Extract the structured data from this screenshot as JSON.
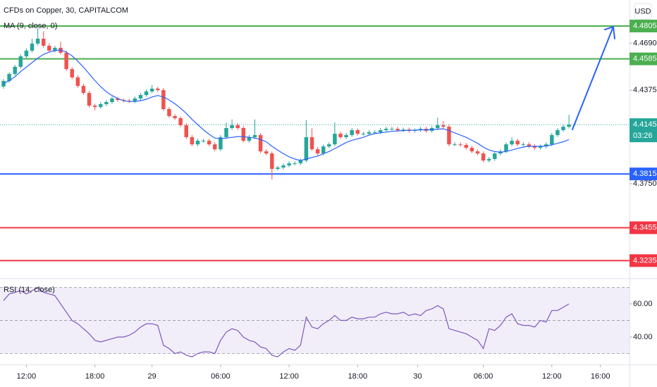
{
  "chart_data": {
    "type": "candlestick",
    "title": "CFDs on Copper, 30, CAPITALCOM",
    "currency": "USD",
    "up_color": "#26a69a",
    "down_color": "#ef5350",
    "open": [
      4.44,
      4.4437,
      4.4484,
      4.4532,
      4.4602,
      4.464,
      4.4687,
      4.472,
      4.4673,
      4.464,
      4.4659,
      4.4626,
      4.4517,
      4.4461,
      4.4404,
      4.4357,
      4.4272,
      4.4263,
      4.4282,
      4.4296,
      4.432,
      4.431,
      4.4305,
      4.4301,
      4.432,
      4.4343,
      4.4367,
      4.4386,
      4.4376,
      4.4249,
      4.4202,
      4.4188,
      4.4141,
      4.4061,
      4.4013,
      4.4037,
      4.4037,
      4.4013,
      4.398,
      4.4061,
      4.4122,
      4.4141,
      4.4122,
      4.4037,
      4.4061,
      4.4075,
      4.3966,
      4.3952,
      4.3849,
      4.3858,
      4.3872,
      4.3886,
      4.3886,
      4.3905,
      4.4061,
      4.398,
      4.3952,
      4.3999,
      4.4013,
      4.4084,
      4.4061,
      4.4075,
      4.4108,
      4.4084,
      4.4084,
      4.4094,
      4.4094,
      4.4108,
      4.4117,
      4.4117,
      4.4108,
      4.4112,
      4.4103,
      4.4108,
      4.4117,
      4.4103,
      4.4122,
      4.4141,
      4.4131,
      4.4013,
      4.4013,
      4.4009,
      4.399,
      4.3966,
      4.3952,
      4.3905,
      4.3915,
      4.3952,
      4.3966,
      4.4013,
      4.4037,
      4.4013,
      4.4013,
      4.3999,
      4.399,
      4.3999,
      4.4013,
      4.4075,
      4.4108,
      4.4131
    ],
    "high": [
      4.445,
      4.4495,
      4.4545,
      4.4615,
      4.4655,
      4.472,
      4.479,
      4.477,
      4.469,
      4.4672,
      4.47,
      4.464,
      4.453,
      4.4475,
      4.4418,
      4.437,
      4.4285,
      4.4296,
      4.431,
      4.4333,
      4.433,
      4.432,
      4.4318,
      4.4333,
      4.4356,
      4.438,
      4.441,
      4.4398,
      4.439,
      4.4262,
      4.4215,
      4.42,
      4.4155,
      4.4075,
      4.405,
      4.405,
      4.405,
      4.4027,
      4.4075,
      4.416,
      4.418,
      4.4155,
      4.4135,
      4.4075,
      4.418,
      4.4088,
      4.398,
      4.3965,
      4.387,
      4.3885,
      4.39,
      4.39,
      4.3918,
      4.4175,
      4.412,
      4.3995,
      4.4012,
      4.4026,
      4.416,
      4.4097,
      4.4088,
      4.4122,
      4.412,
      4.4097,
      4.4107,
      4.4107,
      4.4122,
      4.413,
      4.413,
      4.413,
      4.4125,
      4.4125,
      4.412,
      4.413,
      4.413,
      4.4135,
      4.4192,
      4.417,
      4.4145,
      4.4027,
      4.4026,
      4.4022,
      4.4003,
      4.398,
      4.3966,
      4.3928,
      4.3966,
      4.398,
      4.4026,
      4.406,
      4.405,
      4.4027,
      4.4027,
      4.4013,
      4.4012,
      4.4027,
      4.409,
      4.4122,
      4.4145,
      4.4211
    ],
    "low": [
      4.4385,
      4.4425,
      4.4472,
      4.452,
      4.459,
      4.4628,
      4.4675,
      4.466,
      4.4628,
      4.4628,
      4.4614,
      4.4505,
      4.4449,
      4.4392,
      4.4345,
      4.426,
      4.424,
      4.4251,
      4.427,
      4.4284,
      4.4298,
      4.4293,
      4.4289,
      4.4289,
      4.4308,
      4.4331,
      4.4355,
      4.4364,
      4.4237,
      4.419,
      4.4176,
      4.4129,
      4.4049,
      4.4001,
      4.4001,
      4.4025,
      4.4001,
      4.3968,
      4.3968,
      4.4049,
      4.411,
      4.411,
      4.4025,
      4.4025,
      4.4049,
      4.3954,
      4.394,
      4.3778,
      4.3837,
      4.3846,
      4.386,
      4.3874,
      4.3874,
      4.3893,
      4.3968,
      4.394,
      4.394,
      4.3987,
      4.4001,
      4.4049,
      4.4049,
      4.4063,
      4.4072,
      4.4072,
      4.4072,
      4.4082,
      4.4082,
      4.4096,
      4.4105,
      4.4096,
      4.4096,
      4.4091,
      4.4091,
      4.4096,
      4.4091,
      4.4091,
      4.411,
      4.4119,
      4.4001,
      4.4001,
      4.3997,
      4.3978,
      4.3954,
      4.394,
      4.3893,
      4.3893,
      4.3903,
      4.394,
      4.3954,
      4.4001,
      4.4001,
      4.4001,
      4.3987,
      4.3978,
      4.3978,
      4.3987,
      4.4001,
      4.4063,
      4.4096,
      4.4119
    ],
    "close": [
      4.4437,
      4.4484,
      4.4532,
      4.4602,
      4.464,
      4.4687,
      4.472,
      4.4673,
      4.464,
      4.4659,
      4.4626,
      4.4517,
      4.4461,
      4.4404,
      4.4357,
      4.4272,
      4.4263,
      4.4282,
      4.4296,
      4.432,
      4.431,
      4.4305,
      4.4301,
      4.432,
      4.4343,
      4.4367,
      4.4386,
      4.4376,
      4.4249,
      4.4202,
      4.4188,
      4.4141,
      4.4061,
      4.4013,
      4.4037,
      4.4037,
      4.4013,
      4.398,
      4.4061,
      4.4122,
      4.4141,
      4.4122,
      4.4037,
      4.4061,
      4.4075,
      4.3966,
      4.3952,
      4.3849,
      4.3858,
      4.3872,
      4.3886,
      4.3886,
      4.3905,
      4.4061,
      4.398,
      4.3952,
      4.3999,
      4.4013,
      4.4084,
      4.4061,
      4.4075,
      4.4108,
      4.4084,
      4.4084,
      4.4094,
      4.4094,
      4.4108,
      4.4117,
      4.4117,
      4.4108,
      4.4112,
      4.4103,
      4.4108,
      4.4117,
      4.4103,
      4.4122,
      4.4141,
      4.4131,
      4.4013,
      4.4013,
      4.4009,
      4.399,
      4.3966,
      4.3952,
      4.3905,
      4.3915,
      4.3952,
      4.3966,
      4.4013,
      4.4037,
      4.4013,
      4.4013,
      4.3999,
      4.399,
      4.3999,
      4.4013,
      4.4075,
      4.4108,
      4.4131,
      4.4145
    ],
    "ylim": [
      4.3119,
      4.4979
    ],
    "yticks": [
      {
        "value": 4.469,
        "label": "4.4690"
      },
      4.4375,
      {
        "value": 4.375,
        "label": "4.3750"
      }
    ],
    "xlim": [
      -0.617,
      109.6
    ],
    "xticks": [
      {
        "value": 4,
        "label": "12:00"
      },
      {
        "value": 16,
        "label": "18:00"
      },
      {
        "value": 26,
        "label": "29"
      },
      {
        "value": 38,
        "label": "06:00"
      },
      {
        "value": 50,
        "label": "12:00"
      },
      {
        "value": 62,
        "label": "18:00"
      },
      {
        "value": 72.5,
        "label": "30"
      },
      {
        "value": 84,
        "label": "06:00"
      },
      {
        "value": 96,
        "label": "12:00"
      },
      {
        "value": 104.5,
        "label": "16:00"
      }
    ],
    "levels": [
      {
        "value": 4.4805,
        "color": "#4caf50"
      },
      {
        "value": 4.4585,
        "color": "#4caf50"
      },
      {
        "value": 4.3815,
        "color": "#2962ff"
      },
      {
        "value": 4.3455,
        "color": "#f23645"
      },
      {
        "value": 4.3235,
        "color": "#f23645"
      }
    ],
    "last_price": {
      "value": 4.4145,
      "countdown": "03:26",
      "color": "#26a69a"
    },
    "ma": {
      "name": "MA (9, close, 0)",
      "color": "#2962ff",
      "values": [
        4.442,
        4.444,
        4.4465,
        4.45,
        4.453,
        4.456,
        4.459,
        4.4615,
        4.463,
        4.464,
        4.4645,
        4.463,
        4.4605,
        4.457,
        4.453,
        4.4485,
        4.444,
        4.44,
        4.4365,
        4.434,
        4.432,
        4.4305,
        4.43,
        4.43,
        4.4305,
        4.4315,
        4.433,
        4.434,
        4.433,
        4.431,
        4.4285,
        4.4255,
        4.422,
        4.418,
        4.4145,
        4.411,
        4.408,
        4.4055,
        4.405,
        4.4055,
        4.406,
        4.4065,
        4.4065,
        4.406,
        4.4055,
        4.4045,
        4.403,
        4.4,
        4.3975,
        4.395,
        4.393,
        4.3915,
        4.3905,
        4.3915,
        4.3925,
        4.3935,
        4.395,
        4.3965,
        4.3985,
        4.4005,
        4.4025,
        4.404,
        4.405,
        4.406,
        4.4075,
        4.4085,
        4.409,
        4.4095,
        4.41,
        4.4103,
        4.4105,
        4.4107,
        4.4108,
        4.411,
        4.411,
        4.4112,
        4.4115,
        4.4117,
        4.4105,
        4.409,
        4.4075,
        4.406,
        4.404,
        4.402,
        4.3995,
        4.3975,
        4.3965,
        4.396,
        4.3965,
        4.3975,
        4.3985,
        4.3995,
        4.4,
        4.4,
        4.4,
        4.4002,
        4.401,
        4.402,
        4.403,
        4.4045
      ]
    },
    "rsi": {
      "name": "RSI (14, close)",
      "color": "#7e57c2",
      "values": [
        62,
        66,
        67,
        68,
        66,
        68,
        70,
        67,
        66,
        65,
        60,
        55,
        50,
        48,
        45,
        42,
        38,
        37,
        38,
        39,
        40,
        40,
        41,
        43,
        46,
        48,
        48,
        47,
        35,
        33,
        30,
        31,
        29,
        28,
        30,
        31,
        31,
        30,
        38,
        43,
        45,
        44,
        40,
        38,
        37,
        34,
        33,
        29,
        28,
        31,
        33,
        32,
        35,
        52,
        46,
        45,
        48,
        50,
        53,
        50,
        50,
        52,
        51,
        51,
        52,
        52,
        54,
        55,
        54,
        54,
        55,
        53,
        54,
        53,
        56,
        57,
        59,
        57,
        45,
        44,
        43,
        42,
        40,
        38,
        33,
        45,
        44,
        47,
        52,
        54,
        48,
        47,
        47,
        46,
        50,
        49,
        56,
        56,
        58,
        60
      ],
      "ylim": [
        23.4,
        75.7
      ],
      "yticks": [
        {
          "value": 60,
          "label": "60.00"
        },
        {
          "value": 40,
          "label": "40.00"
        }
      ],
      "bands": [
        70,
        50,
        30
      ]
    }
  }
}
